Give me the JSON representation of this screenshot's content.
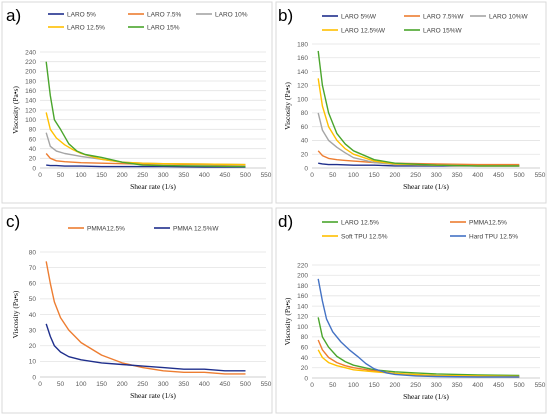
{
  "panels": [
    {
      "letter": "a)"
    },
    {
      "letter": "b)"
    },
    {
      "letter": "c)"
    },
    {
      "letter": "d)"
    }
  ],
  "chart_data": [
    {
      "type": "line",
      "panel": "a)",
      "xlabel": "Shear rate (1/s)",
      "ylabel": "Viscosity (Pa•s)",
      "xlim": [
        0,
        550
      ],
      "ylim": [
        0,
        240
      ],
      "xticks": [
        0,
        50,
        100,
        150,
        200,
        250,
        300,
        350,
        400,
        450,
        500,
        550
      ],
      "yticks": [
        0,
        20,
        40,
        60,
        80,
        100,
        120,
        140,
        160,
        180,
        200,
        220,
        240
      ],
      "grid": "horizontal",
      "legend": "top",
      "series": [
        {
          "name": "LARO 5%",
          "color": "#1f2f8c",
          "points": [
            [
              15,
              6
            ],
            [
              25,
              5
            ],
            [
              40,
              5
            ],
            [
              60,
              4
            ],
            [
              100,
              4
            ],
            [
              150,
              3
            ],
            [
              200,
              3
            ],
            [
              300,
              3
            ],
            [
              400,
              2
            ],
            [
              500,
              2
            ]
          ]
        },
        {
          "name": "LARO 7.5%",
          "color": "#ed7d31",
          "points": [
            [
              15,
              30
            ],
            [
              25,
              20
            ],
            [
              40,
              15
            ],
            [
              60,
              13
            ],
            [
              80,
              12
            ],
            [
              100,
              11
            ],
            [
              150,
              10
            ],
            [
              200,
              9
            ],
            [
              250,
              8
            ],
            [
              300,
              8
            ],
            [
              400,
              7
            ],
            [
              500,
              6
            ]
          ]
        },
        {
          "name": "LARO 10%",
          "color": "#a5a5a5",
          "points": [
            [
              15,
              73
            ],
            [
              25,
              45
            ],
            [
              40,
              35
            ],
            [
              60,
              30
            ],
            [
              80,
              27
            ],
            [
              100,
              24
            ],
            [
              150,
              18
            ],
            [
              200,
              12
            ],
            [
              250,
              10
            ],
            [
              300,
              9
            ],
            [
              400,
              8
            ],
            [
              500,
              7
            ]
          ]
        },
        {
          "name": "LARO 12.5%",
          "color": "#ffc000",
          "points": [
            [
              15,
              115
            ],
            [
              25,
              80
            ],
            [
              40,
              62
            ],
            [
              60,
              48
            ],
            [
              80,
              38
            ],
            [
              100,
              30
            ],
            [
              150,
              18
            ],
            [
              200,
              12
            ],
            [
              250,
              10
            ],
            [
              300,
              9
            ],
            [
              400,
              8
            ],
            [
              500,
              7
            ]
          ]
        },
        {
          "name": "LARO 15%",
          "color": "#4aa52c",
          "points": [
            [
              15,
              220
            ],
            [
              25,
              150
            ],
            [
              35,
              100
            ],
            [
              50,
              80
            ],
            [
              70,
              50
            ],
            [
              90,
              35
            ],
            [
              110,
              28
            ],
            [
              150,
              22
            ],
            [
              200,
              12
            ],
            [
              250,
              6
            ],
            [
              300,
              5
            ],
            [
              400,
              4
            ],
            [
              500,
              3
            ]
          ]
        }
      ]
    },
    {
      "type": "line",
      "panel": "b)",
      "xlabel": "Shear rate (1/s)",
      "ylabel": "Viscosity (Pa•s)",
      "xlim": [
        0,
        550
      ],
      "ylim": [
        0,
        180
      ],
      "xticks": [
        0,
        50,
        100,
        150,
        200,
        250,
        300,
        350,
        400,
        450,
        500,
        550
      ],
      "yticks": [
        0,
        20,
        40,
        60,
        80,
        100,
        120,
        140,
        160,
        180
      ],
      "grid": "horizontal",
      "legend": "top",
      "series": [
        {
          "name": "LARO 5%W",
          "color": "#1f2f8c",
          "points": [
            [
              15,
              7
            ],
            [
              25,
              6
            ],
            [
              40,
              5
            ],
            [
              60,
              5
            ],
            [
              100,
              4
            ],
            [
              150,
              4
            ],
            [
              200,
              3
            ],
            [
              300,
              3
            ],
            [
              400,
              3
            ],
            [
              500,
              3
            ]
          ]
        },
        {
          "name": "LARO 7.5%W",
          "color": "#ed7d31",
          "points": [
            [
              15,
              25
            ],
            [
              25,
              18
            ],
            [
              40,
              14
            ],
            [
              60,
              12
            ],
            [
              80,
              11
            ],
            [
              100,
              10
            ],
            [
              150,
              8
            ],
            [
              200,
              7
            ],
            [
              300,
              6
            ],
            [
              400,
              5
            ],
            [
              500,
              5
            ]
          ]
        },
        {
          "name": "LARO 10%W",
          "color": "#a5a5a5",
          "points": [
            [
              15,
              80
            ],
            [
              25,
              55
            ],
            [
              40,
              40
            ],
            [
              60,
              30
            ],
            [
              80,
              22
            ],
            [
              100,
              15
            ],
            [
              150,
              8
            ],
            [
              200,
              5
            ],
            [
              300,
              4
            ],
            [
              400,
              3
            ],
            [
              500,
              3
            ]
          ]
        },
        {
          "name": "LARO 12.5%W",
          "color": "#ffc000",
          "points": [
            [
              15,
              130
            ],
            [
              25,
              90
            ],
            [
              40,
              60
            ],
            [
              60,
              40
            ],
            [
              80,
              28
            ],
            [
              100,
              20
            ],
            [
              150,
              10
            ],
            [
              200,
              6
            ],
            [
              300,
              4
            ],
            [
              400,
              3
            ],
            [
              500,
              3
            ]
          ]
        },
        {
          "name": "LARO 15%W",
          "color": "#4aa52c",
          "points": [
            [
              15,
              170
            ],
            [
              25,
              120
            ],
            [
              40,
              80
            ],
            [
              60,
              50
            ],
            [
              80,
              35
            ],
            [
              100,
              25
            ],
            [
              150,
              12
            ],
            [
              200,
              7
            ],
            [
              300,
              4
            ],
            [
              400,
              3
            ],
            [
              500,
              3
            ]
          ]
        }
      ]
    },
    {
      "type": "line",
      "panel": "c)",
      "xlabel": "Shear rate (1/s)",
      "ylabel": "Viscosity (Pa•s)",
      "xlim": [
        0,
        550
      ],
      "ylim": [
        0,
        80
      ],
      "xticks": [
        0,
        50,
        100,
        150,
        200,
        250,
        300,
        350,
        400,
        450,
        500,
        550
      ],
      "yticks": [
        0,
        10,
        20,
        30,
        40,
        50,
        60,
        70,
        80
      ],
      "grid": "horizontal",
      "legend": "top",
      "series": [
        {
          "name": "PMMA12.5%",
          "color": "#ed7d31",
          "points": [
            [
              15,
              74
            ],
            [
              25,
              60
            ],
            [
              35,
              48
            ],
            [
              50,
              38
            ],
            [
              70,
              30
            ],
            [
              100,
              22
            ],
            [
              150,
              14
            ],
            [
              200,
              9
            ],
            [
              250,
              6
            ],
            [
              300,
              4
            ],
            [
              350,
              3
            ],
            [
              400,
              3
            ],
            [
              450,
              2
            ],
            [
              500,
              2
            ]
          ]
        },
        {
          "name": "PMMA 12.5%W",
          "color": "#1f2f8c",
          "points": [
            [
              15,
              34
            ],
            [
              25,
              26
            ],
            [
              35,
              20
            ],
            [
              50,
              16
            ],
            [
              70,
              13
            ],
            [
              100,
              11
            ],
            [
              150,
              9
            ],
            [
              200,
              8
            ],
            [
              250,
              7
            ],
            [
              300,
              6
            ],
            [
              350,
              5
            ],
            [
              400,
              5
            ],
            [
              450,
              4
            ],
            [
              500,
              4
            ]
          ]
        }
      ]
    },
    {
      "type": "line",
      "panel": "d)",
      "xlabel": "Shear rate (1/s)",
      "ylabel": "Viscosity (Pa•s)",
      "xlim": [
        0,
        550
      ],
      "ylim": [
        0,
        220
      ],
      "xticks": [
        0,
        50,
        100,
        150,
        200,
        250,
        300,
        350,
        400,
        450,
        500,
        550
      ],
      "yticks": [
        0,
        20,
        40,
        60,
        80,
        100,
        120,
        140,
        160,
        180,
        200,
        220
      ],
      "grid": "horizontal",
      "legend": "top",
      "series": [
        {
          "name": "LARO 12.5%",
          "color": "#4aa52c",
          "points": [
            [
              15,
              118
            ],
            [
              25,
              80
            ],
            [
              40,
              60
            ],
            [
              60,
              42
            ],
            [
              80,
              32
            ],
            [
              100,
              25
            ],
            [
              150,
              16
            ],
            [
              200,
              12
            ],
            [
              250,
              10
            ],
            [
              300,
              8
            ],
            [
              400,
              6
            ],
            [
              500,
              5
            ]
          ]
        },
        {
          "name": "PMMA12.5%",
          "color": "#ed7d31",
          "points": [
            [
              15,
              74
            ],
            [
              25,
              55
            ],
            [
              40,
              40
            ],
            [
              60,
              30
            ],
            [
              80,
              24
            ],
            [
              100,
              20
            ],
            [
              150,
              14
            ],
            [
              200,
              9
            ],
            [
              250,
              6
            ],
            [
              300,
              4
            ],
            [
              400,
              3
            ],
            [
              500,
              2
            ]
          ]
        },
        {
          "name": "Soft TPU 12.5%",
          "color": "#ffc000",
          "points": [
            [
              15,
              55
            ],
            [
              25,
              40
            ],
            [
              40,
              30
            ],
            [
              60,
              24
            ],
            [
              80,
              20
            ],
            [
              100,
              16
            ],
            [
              150,
              12
            ],
            [
              200,
              9
            ],
            [
              250,
              7
            ],
            [
              300,
              5
            ],
            [
              400,
              4
            ],
            [
              500,
              3
            ]
          ]
        },
        {
          "name": "Hard TPU 12.5%",
          "color": "#4472c4",
          "points": [
            [
              15,
              193
            ],
            [
              25,
              150
            ],
            [
              35,
              115
            ],
            [
              50,
              90
            ],
            [
              70,
              70
            ],
            [
              90,
              55
            ],
            [
              110,
              42
            ],
            [
              130,
              28
            ],
            [
              150,
              18
            ],
            [
              180,
              10
            ],
            [
              200,
              7
            ],
            [
              250,
              4
            ],
            [
              300,
              3
            ],
            [
              400,
              2
            ],
            [
              500,
              2
            ]
          ]
        }
      ]
    }
  ]
}
